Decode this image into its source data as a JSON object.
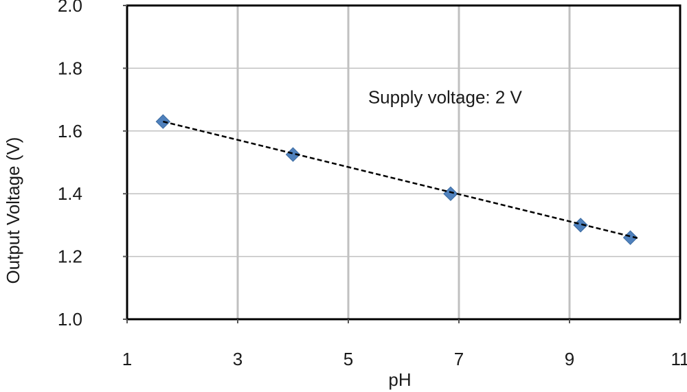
{
  "chart_data": {
    "type": "scatter",
    "title": "",
    "xlabel": "pH",
    "ylabel": "Output Voltage (V)",
    "xlim": [
      1,
      11
    ],
    "ylim": [
      1.0,
      2.0
    ],
    "x_ticks": [
      1,
      3,
      5,
      7,
      9,
      11
    ],
    "y_ticks": [
      1.0,
      1.2,
      1.4,
      1.6,
      1.8,
      2.0
    ],
    "y_tick_labels": [
      "1.0",
      "1.2",
      "1.4",
      "1.6",
      "1.8",
      "2.0"
    ],
    "grid": {
      "vertical": true,
      "horizontal": true
    },
    "series": [
      {
        "marker": "diamond",
        "color": "#4f81bd",
        "points": [
          {
            "x": 1.65,
            "y": 1.63
          },
          {
            "x": 4.0,
            "y": 1.525
          },
          {
            "x": 6.85,
            "y": 1.4
          },
          {
            "x": 9.2,
            "y": 1.3
          },
          {
            "x": 10.1,
            "y": 1.26
          }
        ]
      }
    ],
    "trendline": {
      "style": "dashed",
      "color": "#000000",
      "from": {
        "x": 1.65,
        "y": 1.63
      },
      "to": {
        "x": 10.1,
        "y": 1.26
      }
    },
    "annotations": [
      {
        "text": "Supply voltage: 2 V",
        "x": 6.75,
        "y": 1.71
      }
    ],
    "grid_color": "#c0c0c0",
    "frame_color": "#000000"
  }
}
